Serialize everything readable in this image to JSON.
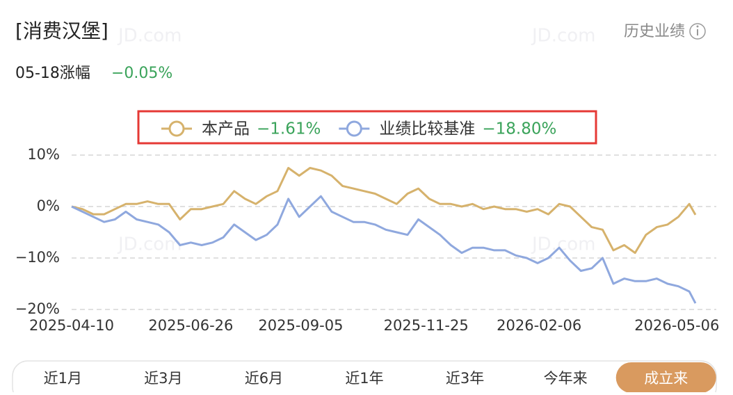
{
  "header": {
    "title": "[消费汉堡]",
    "link": "历史业绩",
    "daily_change_label": "05-18涨幅",
    "daily_change": "−0.05%"
  },
  "watermark": "JD.com",
  "chart_data": {
    "type": "line",
    "x": [
      "2025-04-10",
      "2025-04-17",
      "2025-04-24",
      "2025-05-01",
      "2025-05-08",
      "2025-05-15",
      "2025-05-22",
      "2025-05-29",
      "2025-06-05",
      "2025-06-12",
      "2025-06-19",
      "2025-06-26",
      "2025-07-03",
      "2025-07-10",
      "2025-07-17",
      "2025-07-24",
      "2025-07-31",
      "2025-08-07",
      "2025-08-14",
      "2025-08-21",
      "2025-08-28",
      "2025-09-04",
      "2025-09-11",
      "2025-09-18",
      "2025-09-25",
      "2025-10-02",
      "2025-10-09",
      "2025-10-16",
      "2025-10-23",
      "2025-10-30",
      "2025-11-06",
      "2025-11-13",
      "2025-11-20",
      "2025-11-27",
      "2025-12-04",
      "2025-12-11",
      "2025-12-18",
      "2025-12-25",
      "2026-01-01",
      "2026-01-08",
      "2026-01-15",
      "2026-01-22",
      "2026-01-29",
      "2026-02-05",
      "2026-02-12",
      "2026-02-19",
      "2026-02-26",
      "2026-03-05",
      "2026-03-12",
      "2026-03-19",
      "2026-03-26",
      "2026-04-02",
      "2026-04-09",
      "2026-04-16",
      "2026-04-23",
      "2026-04-30",
      "2026-05-07",
      "2026-05-14",
      "2026-05-18"
    ],
    "series": [
      {
        "name": "本产品",
        "color": "#d6b26c",
        "legend_value": "−1.61%",
        "values": [
          0,
          -0.5,
          -1.5,
          -1.5,
          -0.5,
          0.5,
          0.5,
          1,
          0.5,
          0.5,
          -2.5,
          -0.5,
          -0.5,
          0,
          0.5,
          3,
          1.5,
          0.5,
          2,
          3,
          7.5,
          6,
          7.5,
          7,
          6,
          4,
          3.5,
          3,
          2.5,
          1.5,
          0.5,
          2.5,
          3.5,
          1.5,
          0.5,
          0.5,
          0,
          0.5,
          -0.5,
          0,
          -0.5,
          -0.5,
          -1,
          -0.5,
          -1.5,
          0.5,
          0,
          -2,
          -4,
          -4.5,
          -8.5,
          -7.5,
          -9,
          -5.5,
          -4,
          -3.5,
          -2,
          0.5,
          -1.61
        ]
      },
      {
        "name": "业绩比较基准",
        "color": "#8fa8de",
        "legend_value": "−18.80%",
        "values": [
          0,
          -1,
          -2,
          -3,
          -2.5,
          -1,
          -2.5,
          -3,
          -3.5,
          -5,
          -7.5,
          -7,
          -7.5,
          -7,
          -6,
          -3.5,
          -5,
          -6.5,
          -5.5,
          -3.5,
          1.5,
          -2,
          0,
          2,
          -1,
          -2,
          -3,
          -3,
          -3.5,
          -4.5,
          -5,
          -5.5,
          -2.5,
          -4,
          -5.5,
          -7.5,
          -9,
          -8,
          -8,
          -8.5,
          -8.5,
          -9.5,
          -10,
          -11,
          -10,
          -8,
          -10.5,
          -12.5,
          -12,
          -10,
          -15,
          -14,
          -14.5,
          -14.5,
          -14,
          -15,
          -15.5,
          -16.5,
          -18.8
        ]
      }
    ],
    "xlim": [
      "2025-04-10",
      "2026-05-18"
    ],
    "xticks": [
      "2025-04-10",
      "2025-06-26",
      "2025-09-05",
      "2025-11-25",
      "2026-02-06",
      "2026-05-06"
    ],
    "ylim": [
      -20,
      10
    ],
    "yticks": [
      {
        "value": 10,
        "label": "10%"
      },
      {
        "value": 0,
        "label": "0%"
      },
      {
        "value": -10,
        "label": "−10%"
      },
      {
        "value": -20,
        "label": "−20%"
      }
    ],
    "grid": true
  },
  "tabs": [
    "近1月",
    "近3月",
    "近6月",
    "近1年",
    "近3年",
    "今年来",
    "成立来"
  ],
  "selected_tab": "成立来"
}
